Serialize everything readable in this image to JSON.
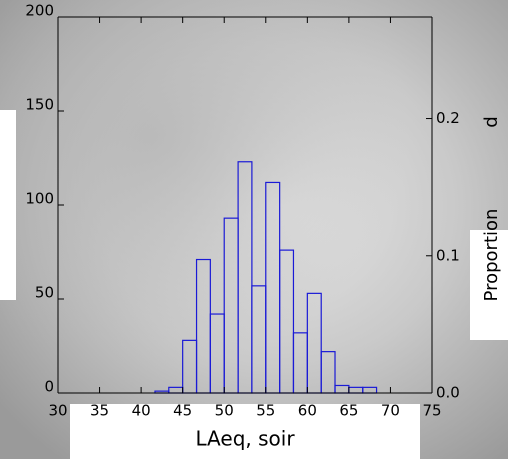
{
  "chart_data": {
    "type": "histogram",
    "x_label": "LAeq, soir",
    "y2_label": "Proportion",
    "annotation": "p",
    "bins": [
      30,
      31.67,
      33.33,
      35,
      36.67,
      38.33,
      40,
      41.67,
      43.33,
      45,
      46.67,
      48.33,
      50,
      51.67,
      53.33,
      55,
      56.67,
      58.33,
      60,
      61.67,
      63.33,
      65,
      66.67,
      68.33,
      70,
      71.67,
      73.33,
      75
    ],
    "counts": [
      0,
      0,
      0,
      0,
      0,
      0,
      0,
      1,
      3,
      28,
      71,
      42,
      93,
      123,
      57,
      112,
      76,
      32,
      53,
      22,
      4,
      3,
      3,
      0,
      0,
      0,
      0
    ],
    "color": "#1a1ad6",
    "xlim": [
      30,
      75
    ],
    "xticks": [
      30,
      35,
      40,
      45,
      50,
      55,
      60,
      65,
      70,
      75
    ],
    "ylim": [
      0,
      200
    ],
    "yticks": [
      0,
      50,
      100,
      150,
      200
    ],
    "y2lim": [
      0,
      0.274
    ],
    "y2ticks": [
      {
        "value": 0,
        "label": "0.0"
      },
      0.1,
      0.2
    ]
  }
}
